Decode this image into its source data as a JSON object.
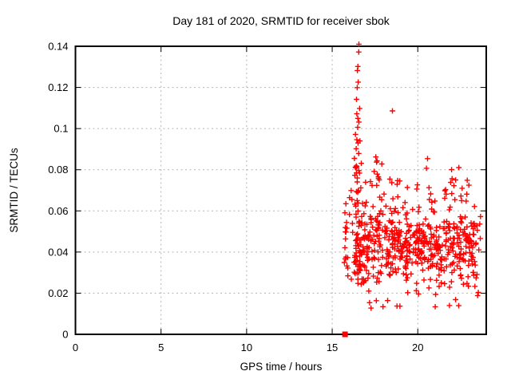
{
  "page": {
    "background": "#ffffff"
  },
  "chart_data": {
    "type": "scatter",
    "title": "Day 181 of 2020, SRMTID for receiver sbok",
    "xlabel": "GPS time / hours",
    "ylabel": "SRMTID / TECUs",
    "xlim": [
      0,
      24
    ],
    "ylim": [
      0,
      0.14
    ],
    "xticks": [
      {
        "v": 0,
        "label": "0"
      },
      {
        "v": 5,
        "label": "5"
      },
      {
        "v": 10,
        "label": "10"
      },
      {
        "v": 15,
        "label": "15"
      },
      {
        "v": 20,
        "label": "20"
      }
    ],
    "yticks": [
      {
        "v": 0,
        "label": "0"
      },
      {
        "v": 0.02,
        "label": "0.02"
      },
      {
        "v": 0.04,
        "label": "0.04"
      },
      {
        "v": 0.06,
        "label": "0.06"
      },
      {
        "v": 0.08,
        "label": "0.08"
      },
      {
        "v": 0.1,
        "label": "0.1"
      },
      {
        "v": 0.12,
        "label": "0.12"
      },
      {
        "v": 0.14,
        "label": "0.14"
      }
    ],
    "grid": "dashed",
    "legend": "none",
    "marker": {
      "shape": "plus",
      "color": "#ff0000",
      "size": 7
    },
    "colors": {
      "grid": "#b4b4b4",
      "axis": "#000000",
      "text": "#000000"
    },
    "seed": 1337,
    "points": [
      [
        16.56,
        0.141
      ],
      [
        16.55,
        0.1372
      ],
      [
        16.5,
        0.1302
      ],
      [
        16.47,
        0.1282
      ],
      [
        16.52,
        0.1226
      ],
      [
        16.46,
        0.1199
      ],
      [
        16.42,
        0.1142
      ],
      [
        16.6,
        0.1098
      ],
      [
        18.52,
        0.1086
      ],
      [
        16.44,
        0.1072
      ],
      [
        16.5,
        0.105
      ],
      [
        16.56,
        0.1032
      ],
      [
        16.49,
        0.1006
      ],
      [
        16.36,
        0.0972
      ],
      [
        16.44,
        0.0946
      ],
      [
        16.51,
        0.093
      ],
      [
        16.4,
        0.0902
      ],
      [
        16.62,
        0.094
      ],
      [
        16.55,
        0.0879
      ],
      [
        16.3,
        0.0855
      ],
      [
        17.55,
        0.0862
      ],
      [
        20.57,
        0.0854
      ],
      [
        17.62,
        0.0843
      ],
      [
        16.7,
        0.0831
      ],
      [
        17.9,
        0.0828
      ],
      [
        16.35,
        0.0812
      ],
      [
        17.45,
        0.0792
      ],
      [
        22.59,
        0.071
      ],
      [
        22.99,
        0.0725
      ],
      [
        21.0,
        0.0648
      ],
      [
        22.77,
        0.057
      ]
    ],
    "special_points": [
      {
        "x": 15.75,
        "y": 0,
        "shape": "square",
        "color": "#ff0000"
      }
    ],
    "clusters": [
      {
        "n": 20,
        "x": {
          "dist": "gauss",
          "mean": 16.5,
          "sd": 0.13,
          "min": 16.2,
          "max": 16.85
        },
        "y": {
          "dist": "uniform",
          "min": 0.058,
          "max": 0.082
        }
      },
      {
        "n": 25,
        "x": {
          "dist": "gauss",
          "mean": 16.55,
          "sd": 0.14,
          "min": 16.25,
          "max": 16.9
        },
        "y": {
          "dist": "uniform",
          "min": 0.024,
          "max": 0.06
        }
      },
      {
        "n": 330,
        "x": {
          "dist": "uniform",
          "min": 16.55,
          "max": 23.35
        },
        "y": {
          "dist": "gauss",
          "mean": 0.0445,
          "sd": 0.0115,
          "min": 0.02,
          "max": 0.078
        }
      },
      {
        "n": 150,
        "x": {
          "dist": "uniform",
          "min": 16.6,
          "max": 23.25
        },
        "y": {
          "dist": "gauss",
          "mean": 0.042,
          "sd": 0.007,
          "min": 0.024,
          "max": 0.06
        }
      },
      {
        "n": 42,
        "x": {
          "dist": "uniform",
          "min": 15.65,
          "max": 16.6
        },
        "y": {
          "dist": "gauss",
          "mean": 0.043,
          "sd": 0.013,
          "min": 0.021,
          "max": 0.07
        }
      },
      {
        "n": 40,
        "x": {
          "dist": "uniform",
          "min": 16.7,
          "max": 23.2
        },
        "y": {
          "dist": "uniform",
          "min": 0.058,
          "max": 0.076
        }
      },
      {
        "n": 8,
        "x": {
          "dist": "uniform",
          "min": 16.9,
          "max": 22.4
        },
        "y": {
          "dist": "uniform",
          "min": 0.075,
          "max": 0.084
        }
      },
      {
        "n": 15,
        "x": {
          "dist": "uniform",
          "min": 16.9,
          "max": 23.4
        },
        "y": {
          "dist": "uniform",
          "min": 0.0125,
          "max": 0.0215
        }
      },
      {
        "n": 14,
        "x": {
          "dist": "uniform",
          "min": 23.25,
          "max": 23.8
        },
        "y": {
          "dist": "gauss",
          "mean": 0.04,
          "sd": 0.014,
          "min": 0.015,
          "max": 0.068
        }
      }
    ]
  }
}
